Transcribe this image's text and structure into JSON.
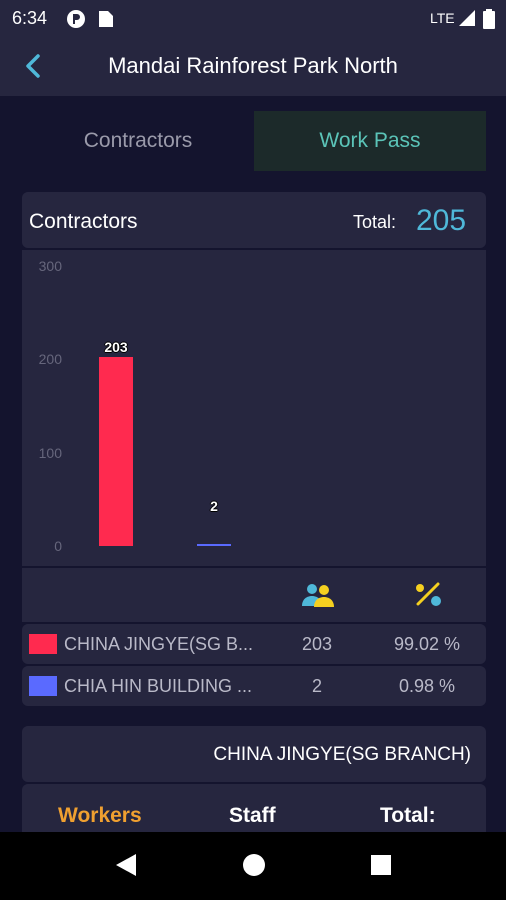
{
  "status": {
    "time": "6:34",
    "network": "LTE"
  },
  "header": {
    "title": "Mandai Rainforest Park North",
    "back_icon": "chevron-left-icon"
  },
  "tabs": [
    {
      "label": "Contractors",
      "active": false
    },
    {
      "label": "Work Pass",
      "active": true
    }
  ],
  "summary": {
    "title": "Contractors",
    "total_label": "Total:",
    "total_value": "205"
  },
  "chart_data": {
    "type": "bar",
    "categories": [
      "CHINA JINGYE(SG BRANCH)",
      "CHIA HIN BUILDING"
    ],
    "values": [
      203,
      2
    ],
    "data_labels": [
      "203",
      "2"
    ],
    "colors": [
      "#ff2a4f",
      "#5a6aff"
    ],
    "ylim": [
      0,
      300
    ],
    "yticks": [
      "0",
      "100",
      "200",
      "300"
    ],
    "grid": false,
    "legend": "none"
  },
  "table": {
    "columns": [
      {
        "icon": "workers-group-icon"
      },
      {
        "icon": "percent-icon"
      }
    ],
    "rows": [
      {
        "name": "CHINA JINGYE(SG B...",
        "count": "203",
        "percent": "99.02 %",
        "color": "#ff2a4f"
      },
      {
        "name": "CHIA HIN BUILDING ...",
        "count": "2",
        "percent": "0.98 %",
        "color": "#5a6aff"
      }
    ]
  },
  "selected_contractor": {
    "name": "CHINA JINGYE(SG BRANCH)"
  },
  "breakdown": {
    "workers_label": "Workers",
    "staff_label": "Staff",
    "total_label": "Total:",
    "accent_color": "#f0a030"
  }
}
